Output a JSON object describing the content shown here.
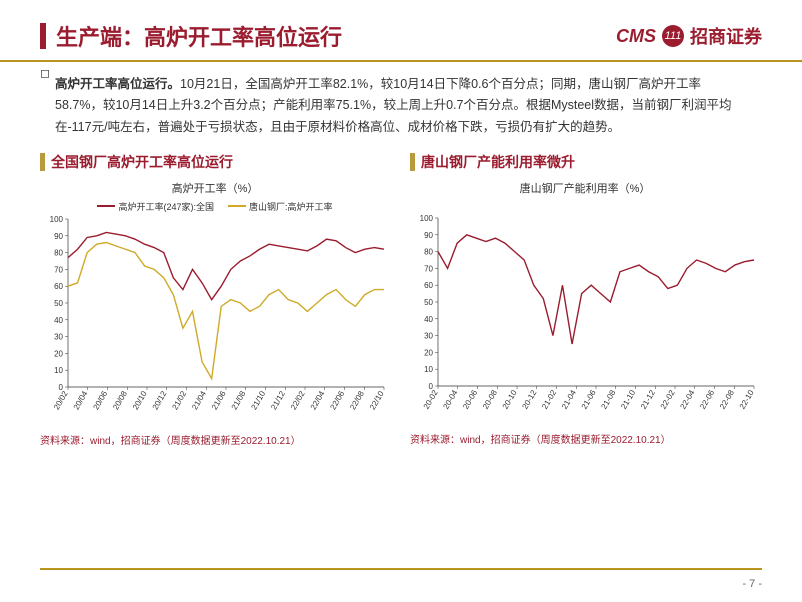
{
  "header": {
    "title": "生产端：高炉开工率高位运行",
    "logo_cms": "CMS",
    "logo_icon": "111",
    "logo_cn": "招商证券"
  },
  "body": {
    "marker": "◻",
    "lead": "高炉开工率高位运行。",
    "text": "10月21日，全国高炉开工率82.1%，较10月14日下降0.6个百分点；同期，唐山钢厂高炉开工率58.7%，较10月14日上升3.2个百分点；产能利用率75.1%，较上周上升0.7个百分点。根据Mysteel数据，当前钢厂利润平均在-117元/吨左右，普遍处于亏损状态，且由于原材料价格高位、成材价格下跌，亏损仍有扩大的趋势。"
  },
  "chart_left": {
    "panel_title": "全国钢厂高炉开工率高位运行",
    "chart_title": "高炉开工率（%）",
    "legend": [
      {
        "label": "高炉开工率(247家):全国",
        "color": "#9b1c2f"
      },
      {
        "label": "唐山钢厂:高炉开工率",
        "color": "#cfa927"
      }
    ],
    "ylim": [
      0,
      100
    ],
    "ytick_step": 10,
    "x_labels": [
      "20/02",
      "20/04",
      "20/06",
      "20/08",
      "20/10",
      "20/12",
      "21/02",
      "21/04",
      "21/06",
      "21/08",
      "21/10",
      "21/12",
      "22/02",
      "22/04",
      "22/06",
      "22/08",
      "22/10"
    ],
    "series": [
      {
        "color": "#9b1c2f",
        "width": 1.4,
        "values": [
          77,
          82,
          89,
          90,
          92,
          91,
          90,
          88,
          85,
          83,
          80,
          65,
          58,
          70,
          62,
          52,
          60,
          70,
          75,
          78,
          82,
          85,
          84,
          83,
          82,
          81,
          84,
          88,
          87,
          83,
          80,
          82,
          83,
          82
        ]
      },
      {
        "color": "#cfa927",
        "width": 1.4,
        "values": [
          60,
          62,
          80,
          85,
          86,
          84,
          82,
          80,
          72,
          70,
          65,
          55,
          35,
          45,
          15,
          5,
          48,
          52,
          50,
          45,
          48,
          55,
          58,
          52,
          50,
          45,
          50,
          55,
          58,
          52,
          48,
          55,
          58,
          58
        ]
      }
    ],
    "background": "#ffffff",
    "axis_color": "#333333",
    "label_fontsize": 8
  },
  "chart_right": {
    "panel_title": "唐山钢厂产能利用率微升",
    "chart_title": "唐山钢厂产能利用率（%）",
    "ylim": [
      0,
      100
    ],
    "ytick_step": 10,
    "x_labels": [
      "20-02",
      "20-04",
      "20-06",
      "20-08",
      "20-10",
      "20-12",
      "21-02",
      "21-04",
      "21-06",
      "21-08",
      "21-10",
      "21-12",
      "22-02",
      "22-04",
      "22-06",
      "22-08",
      "22-10"
    ],
    "series": [
      {
        "color": "#9b1c2f",
        "width": 1.4,
        "values": [
          80,
          70,
          85,
          90,
          88,
          86,
          88,
          85,
          80,
          75,
          60,
          52,
          30,
          60,
          25,
          55,
          60,
          55,
          50,
          68,
          70,
          72,
          68,
          65,
          58,
          60,
          70,
          75,
          73,
          70,
          68,
          72,
          74,
          75
        ]
      }
    ],
    "background": "#ffffff",
    "axis_color": "#333333",
    "label_fontsize": 8
  },
  "source": {
    "left": "资料来源：wind，招商证券（周度数据更新至2022.10.21）",
    "right": "资料来源：wind，招商证券（周度数据更新至2022.10.21）"
  },
  "page": "- 7 -"
}
